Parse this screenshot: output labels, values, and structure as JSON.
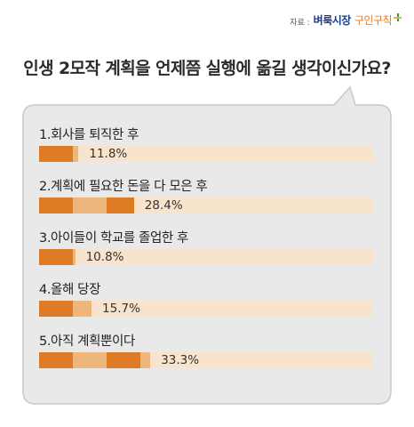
{
  "source": {
    "prefix": "자료 :",
    "brand": "벼룩시장",
    "brand2": "구인구직"
  },
  "chart_data": {
    "type": "bar",
    "title": "인생 2모작 계획을 언제쯤 실행에 옮길 생각이신가요?",
    "unit": "%",
    "xlim": [
      0,
      100
    ],
    "categories": [
      "1.회사를 퇴직한 후",
      "2.계획에 필요한 돈을 다 모은 후",
      "3.아이들이 학교를 졸업한 후",
      "4.올해 당장",
      "5.아직 계획뿐이다"
    ],
    "values": [
      11.8,
      28.4,
      10.8,
      15.7,
      33.3
    ],
    "value_labels": [
      "11.8%",
      "28.4%",
      "10.8%",
      "15.7%",
      "33.3%"
    ],
    "colors": {
      "bar_dark": "#de7b25",
      "bar_light": "#ecb67c",
      "track": "#f8e3cc",
      "bubble": "#e9e9e9",
      "bubble_border": "#c8c8c8"
    }
  }
}
